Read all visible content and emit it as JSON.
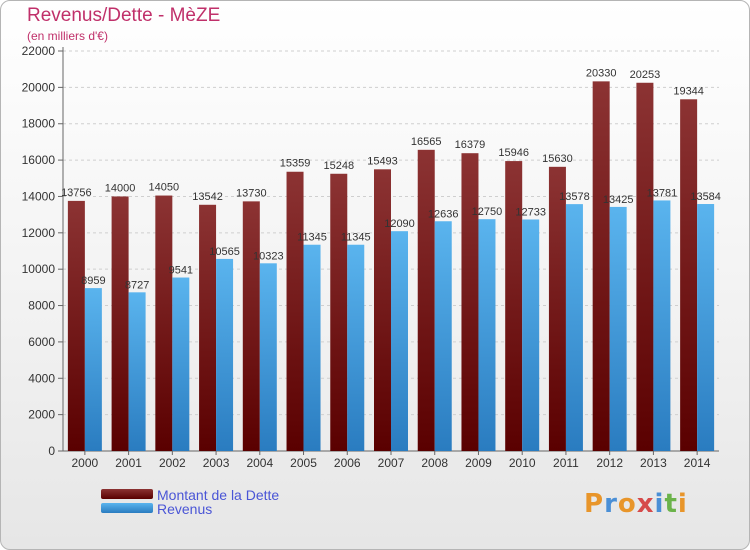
{
  "title": "Revenus/Dette - MèZE",
  "subtitle": "(en milliers d'€)",
  "brand": {
    "letters": [
      "P",
      "r",
      "o",
      "x",
      "i",
      "t",
      "i"
    ],
    "colors": [
      "#e8952a",
      "#4a8fd6",
      "#e8952a",
      "#d64a4a",
      "#4a8fd6",
      "#6bb34a",
      "#e8952a"
    ]
  },
  "legend": [
    {
      "label": "Montant de la Dette",
      "color": "#7a1c1c"
    },
    {
      "label": "Revenus",
      "color": "#4aa0e0"
    }
  ],
  "chart_data": {
    "type": "bar",
    "title": "Revenus/Dette - MèZE",
    "subtitle": "(en milliers d'€)",
    "categories": [
      "2000",
      "2001",
      "2002",
      "2003",
      "2004",
      "2005",
      "2006",
      "2007",
      "2008",
      "2009",
      "2010",
      "2011",
      "2012",
      "2013",
      "2014"
    ],
    "series": [
      {
        "name": "Montant de la Dette",
        "color": "#7a1c1c",
        "values": [
          13756,
          14000,
          14050,
          13542,
          13730,
          15359,
          15248,
          15493,
          16565,
          16379,
          15946,
          15630,
          20330,
          20253,
          19344
        ]
      },
      {
        "name": "Revenus",
        "color": "#4aa0e0",
        "values": [
          8959,
          8727,
          9541,
          10565,
          10323,
          11345,
          11345,
          12090,
          12636,
          12750,
          12733,
          13578,
          13425,
          13781,
          13584
        ]
      }
    ],
    "yticks": [
      0,
      2000,
      4000,
      6000,
      8000,
      10000,
      12000,
      14000,
      16000,
      18000,
      20000,
      22000
    ],
    "ylim": [
      0,
      22000
    ],
    "grid": true,
    "legend_position": "bottom-left"
  }
}
